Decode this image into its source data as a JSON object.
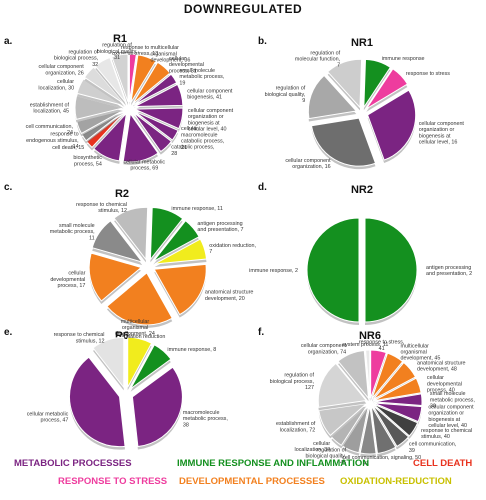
{
  "figure_title": "DOWNREGULATED",
  "chart_data": [
    {
      "type": "pie",
      "panel": "a.",
      "title": "R1",
      "slices": [
        {
          "label": "response to oxidative stress, 13",
          "value": 13,
          "color": "#ee3c9e"
        },
        {
          "label": "multicellular organismal development, 36",
          "value": 36,
          "color": "#f2801f"
        },
        {
          "label": "cellular developmental process, 31",
          "value": 31,
          "color": "#f2801f"
        },
        {
          "label": "small molecule metabolic process, 19",
          "value": 19,
          "color": "#7b2482"
        },
        {
          "label": "cellular component biogenesis, 41",
          "value": 41,
          "color": "#7b2482"
        },
        {
          "label": "cellular component organization or biogenesis at cellular level, 40",
          "value": 40,
          "color": "#7b2482"
        },
        {
          "label": "cellular macromolecule catabolic process, 21",
          "value": 21,
          "color": "#7b2482"
        },
        {
          "label": "catabolic process, 28",
          "value": 28,
          "color": "#7b2482"
        },
        {
          "label": "cellular metabolic process, 69",
          "value": 69,
          "color": "#7b2482"
        },
        {
          "label": "biosynthetic process, 54",
          "value": 54,
          "color": "#7b2482"
        },
        {
          "label": "cell death, 15",
          "value": 15,
          "color": "#e8321e"
        },
        {
          "label": "response to endogenous stimulus, 14",
          "value": 14,
          "color": "#8a8a8a"
        },
        {
          "label": "cell communication, 24",
          "value": 24,
          "color": "#a3a3a3"
        },
        {
          "label": "establishment of localization, 45",
          "value": 45,
          "color": "#bdbdbd"
        },
        {
          "label": "cellular localization, 30",
          "value": 30,
          "color": "#cfcfcf"
        },
        {
          "label": "cellular component organization, 26",
          "value": 26,
          "color": "#dcdcdc"
        },
        {
          "label": "regulation of biological process, 32",
          "value": 32,
          "color": "#e7e7e7"
        },
        {
          "label": "regulation of biological quality, 31",
          "value": 31,
          "color": "#d2d2d2"
        }
      ]
    },
    {
      "type": "pie",
      "panel": "b.",
      "title": "NR1",
      "slices": [
        {
          "label": "immune response",
          "value": 5,
          "color": "#14901f"
        },
        {
          "label": "response to stress",
          "value": 4,
          "color": "#ee3c9e"
        },
        {
          "label": "cellular component organization or biogenesis at cellular level, 16",
          "value": 16,
          "color": "#7b2482"
        },
        {
          "label": "cellular component organization, 16",
          "value": 16,
          "color": "#6e6e6e"
        },
        {
          "label": "regulation of biological quality, 9",
          "value": 9,
          "color": "#a8a8a8"
        },
        {
          "label": "regulation of molecular function, 7",
          "value": 7,
          "color": "#cdcdcd"
        }
      ]
    },
    {
      "type": "pie",
      "panel": "c.",
      "title": "R2",
      "slices": [
        {
          "label": "immune response, 11",
          "value": 11,
          "color": "#14901f"
        },
        {
          "label": "antigen processing and presentation, 7",
          "value": 7,
          "color": "#14901f"
        },
        {
          "label": "oxidation reduction, 7",
          "value": 7,
          "color": "#f1ec1d"
        },
        {
          "label": "anatomical structure development, 20",
          "value": 20,
          "color": "#f2801f"
        },
        {
          "label": "multicellular organismal development, 24",
          "value": 24,
          "color": "#f2801f"
        },
        {
          "label": "cellular developmental process, 17",
          "value": 17,
          "color": "#f2801f"
        },
        {
          "label": "small molecule metabolic process, 11",
          "value": 11,
          "color": "#8a8a8a"
        },
        {
          "label": "response to chemical stimulus, 12",
          "value": 12,
          "color": "#bdbdbd"
        }
      ]
    },
    {
      "type": "pie",
      "panel": "d.",
      "title": "NR2",
      "slices": [
        {
          "label": "antigen processing and presentation, 2",
          "value": 2,
          "color": "#14901f"
        },
        {
          "label": "immune response, 2",
          "value": 2,
          "color": "#14901f"
        }
      ]
    },
    {
      "type": "pie",
      "panel": "e.",
      "title": "R6",
      "slices": [
        {
          "label": "oxidation reduction",
          "value": 9,
          "color": "#f1ec1d"
        },
        {
          "label": "immune response, 8",
          "value": 8,
          "color": "#14901f"
        },
        {
          "label": "macromolecule metabolic process, 38",
          "value": 38,
          "color": "#7b2482"
        },
        {
          "label": "cellular metabolic process, 47",
          "value": 47,
          "color": "#7b2482"
        },
        {
          "label": "response to chemical stimulus, 12",
          "value": 12,
          "color": "#e3e3e3"
        }
      ]
    },
    {
      "type": "pie",
      "panel": "f.",
      "title": "NR6",
      "slices": [
        {
          "label": "response to stress, 41",
          "value": 41,
          "color": "#ee3c9e"
        },
        {
          "label": "multicellular organismal development, 45",
          "value": 45,
          "color": "#f2801f"
        },
        {
          "label": "anatomical structure development, 48",
          "value": 48,
          "color": "#f2801f"
        },
        {
          "label": "cellular developmental process, 40",
          "value": 40,
          "color": "#f2801f"
        },
        {
          "label": "small molecule metabolic process, 30",
          "value": 30,
          "color": "#7b2482"
        },
        {
          "label": "cellular component organization or biogenesis at cellular level, 40",
          "value": 40,
          "color": "#7b2482"
        },
        {
          "label": "response to chemical stimulus, 40",
          "value": 40,
          "color": "#404040"
        },
        {
          "label": "cell communication, 39",
          "value": 39,
          "color": "#595959"
        },
        {
          "label": "signaling, 50",
          "value": 50,
          "color": "#707070"
        },
        {
          "label": "cell communication, 41",
          "value": 41,
          "color": "#888888"
        },
        {
          "label": "regulation of biological quality, 46",
          "value": 46,
          "color": "#9e9e9e"
        },
        {
          "label": "cellular localization, 34",
          "value": 34,
          "color": "#b4b4b4"
        },
        {
          "label": "establishment of localization, 72",
          "value": 72,
          "color": "#c7c7c7"
        },
        {
          "label": "regulation of biological process, 127",
          "value": 127,
          "color": "#d5d5d5"
        },
        {
          "label": "cellular component organization, 74",
          "value": 74,
          "color": "#c2c2c2"
        },
        {
          "label": "system process, 11",
          "value": 11,
          "color": "#e9e9e9"
        }
      ]
    }
  ],
  "legend": [
    {
      "label": "METABOLIC PROCESSES",
      "color": "#7b2482"
    },
    {
      "label": "IMMUNE RESPONSE AND INFLAMMATION",
      "color": "#14901f"
    },
    {
      "label": "CELL DEATH",
      "color": "#e8321e"
    },
    {
      "label": "RESPONSE TO STRESS",
      "color": "#ee3c9e"
    },
    {
      "label": "DEVELOPMENTAL PROCESSES",
      "color": "#f2801f"
    },
    {
      "label": "OXIDATION-REDUCTION",
      "color": "#f1ec1d"
    }
  ]
}
